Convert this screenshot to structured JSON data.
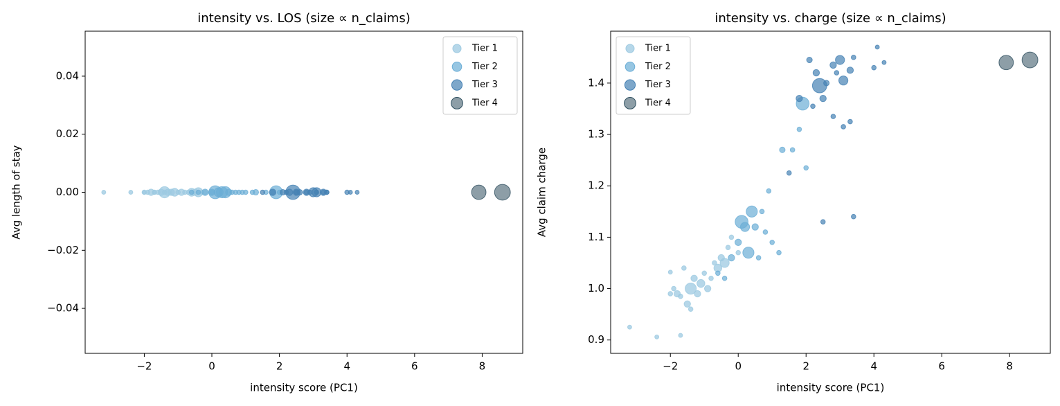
{
  "chart_data": [
    {
      "type": "scatter",
      "title": "intensity vs. LOS (size ∝ n_claims)",
      "xlabel": "intensity score (PC1)",
      "ylabel": "Avg length of stay",
      "xlim": [
        -3.75,
        9.2
      ],
      "ylim": [
        -0.0555,
        0.0555
      ],
      "xticks": [
        {
          "value": -2,
          "label": "−2"
        },
        0,
        2,
        4,
        6,
        8
      ],
      "yticks": [
        {
          "value": -0.04,
          "label": "−0.04"
        },
        {
          "value": -0.02,
          "label": "−0.02"
        },
        {
          "value": 0,
          "label": "0.00"
        },
        0.02,
        0.04
      ],
      "legend": "upper right",
      "series": [
        {
          "name": "Tier 1",
          "color": "#9ecae1",
          "x": [
            -3.2,
            -2.4,
            -1.7,
            -2.0,
            -2.0,
            -1.9,
            -1.8,
            -1.7,
            -1.6,
            -1.5,
            -1.4,
            -1.4,
            -1.3,
            -1.2,
            -1.1,
            -1.0,
            -0.9,
            -0.8,
            -0.7,
            -0.6,
            -0.5,
            -0.4,
            -0.3,
            -0.2,
            0.0
          ],
          "values": [
            0,
            0,
            0,
            0,
            0,
            0,
            0,
            0,
            0,
            0,
            0,
            0,
            0,
            0,
            0,
            0,
            0,
            0,
            0,
            0,
            0,
            0,
            0,
            0,
            0
          ],
          "sizes": [
            8,
            8,
            8,
            8,
            10,
            10,
            20,
            10,
            10,
            20,
            10,
            60,
            20,
            20,
            30,
            10,
            20,
            10,
            10,
            30,
            20,
            40,
            10,
            10,
            10
          ]
        },
        {
          "name": "Tier 2",
          "color": "#6baed6",
          "x": [
            -0.6,
            -0.4,
            -0.2,
            0.0,
            0.1,
            0.2,
            0.4,
            0.5,
            0.7,
            0.8,
            0.9,
            1.2,
            1.3,
            1.6,
            1.9,
            1.8,
            2.0,
            0.3,
            1.0,
            0.6
          ],
          "values": [
            0,
            0,
            0,
            0,
            0,
            0,
            0,
            0,
            0,
            0,
            0,
            0,
            0,
            0,
            0,
            0,
            0,
            0,
            0,
            0
          ],
          "sizes": [
            10,
            10,
            20,
            20,
            80,
            40,
            60,
            20,
            10,
            10,
            10,
            10,
            15,
            10,
            80,
            10,
            10,
            60,
            10,
            10
          ]
        },
        {
          "name": "Tier 3",
          "color": "#4682b4",
          "x": [
            1.5,
            1.8,
            2.1,
            2.4,
            2.3,
            2.5,
            2.6,
            2.8,
            3.0,
            3.1,
            3.3,
            3.4,
            2.8,
            3.1,
            3.3,
            3.4,
            2.5,
            4.0,
            4.1,
            4.3,
            2.2,
            2.9
          ],
          "values": [
            0,
            0,
            0,
            0,
            0,
            0,
            0,
            0,
            0,
            0,
            0,
            0,
            0,
            0,
            0,
            0,
            0,
            0,
            0,
            0,
            0,
            0
          ],
          "sizes": [
            10,
            20,
            15,
            100,
            20,
            20,
            15,
            20,
            40,
            40,
            20,
            10,
            10,
            10,
            10,
            10,
            10,
            10,
            8,
            8,
            10,
            10
          ]
        },
        {
          "name": "Tier 4",
          "color": "#2f4f5f",
          "x": [
            7.9,
            8.6
          ],
          "values": [
            0,
            0
          ],
          "sizes": [
            100,
            120
          ]
        }
      ]
    },
    {
      "type": "scatter",
      "title": "intensity vs. charge (size ∝ n_claims)",
      "xlabel": "intensity score (PC1)",
      "ylabel": "Avg claim charge",
      "xlim": [
        -3.76,
        9.2
      ],
      "ylim": [
        0.874,
        1.501
      ],
      "xticks": [
        {
          "value": -2,
          "label": "−2"
        },
        0,
        2,
        4,
        6,
        8
      ],
      "yticks": [
        0.9,
        {
          "value": 1.0,
          "label": "1.0"
        },
        1.1,
        1.2,
        1.3,
        1.4
      ],
      "legend": "upper left",
      "series": [
        {
          "name": "Tier 1",
          "color": "#9ecae1",
          "x": [
            -3.2,
            -2.4,
            -1.7,
            -2.0,
            -2.0,
            -1.9,
            -1.8,
            -1.7,
            -1.6,
            -1.5,
            -1.4,
            -1.4,
            -1.3,
            -1.2,
            -1.1,
            -1.0,
            -0.9,
            -0.8,
            -0.7,
            -0.6,
            -0.5,
            -0.4,
            -0.3,
            -0.2,
            0.0
          ],
          "values": [
            0.925,
            0.906,
            0.909,
            1.032,
            0.99,
            1.0,
            0.99,
            0.985,
            1.04,
            0.97,
            0.96,
            1.0,
            1.02,
            0.99,
            1.01,
            1.03,
            1.0,
            1.02,
            1.05,
            1.04,
            1.06,
            1.05,
            1.08,
            1.1,
            1.07
          ],
          "sizes": [
            8,
            8,
            8,
            8,
            10,
            10,
            20,
            10,
            10,
            20,
            10,
            60,
            20,
            20,
            30,
            10,
            20,
            10,
            10,
            30,
            20,
            40,
            10,
            10,
            10
          ]
        },
        {
          "name": "Tier 2",
          "color": "#6baed6",
          "x": [
            -0.6,
            -0.4,
            -0.2,
            0.0,
            0.1,
            0.2,
            0.4,
            0.5,
            0.7,
            0.8,
            0.9,
            1.2,
            1.3,
            1.6,
            1.9,
            1.8,
            2.0,
            0.3,
            1.0,
            0.6
          ],
          "values": [
            1.03,
            1.02,
            1.06,
            1.09,
            1.13,
            1.12,
            1.15,
            1.12,
            1.15,
            1.11,
            1.19,
            1.07,
            1.27,
            1.27,
            1.36,
            1.31,
            1.235,
            1.07,
            1.09,
            1.06
          ],
          "sizes": [
            10,
            10,
            20,
            20,
            80,
            40,
            60,
            20,
            10,
            10,
            10,
            10,
            15,
            10,
            80,
            10,
            10,
            60,
            10,
            10
          ]
        },
        {
          "name": "Tier 3",
          "color": "#4682b4",
          "x": [
            1.5,
            1.8,
            2.1,
            2.4,
            2.3,
            2.5,
            2.6,
            2.8,
            3.0,
            3.1,
            3.3,
            3.4,
            2.8,
            3.1,
            3.3,
            3.4,
            2.5,
            4.0,
            4.1,
            4.3,
            2.2,
            2.9
          ],
          "values": [
            1.225,
            1.37,
            1.445,
            1.395,
            1.42,
            1.37,
            1.4,
            1.435,
            1.445,
            1.405,
            1.425,
            1.45,
            1.335,
            1.315,
            1.325,
            1.14,
            1.13,
            1.43,
            1.47,
            1.44,
            1.355,
            1.42
          ],
          "sizes": [
            10,
            20,
            15,
            100,
            20,
            20,
            15,
            20,
            40,
            40,
            20,
            10,
            10,
            10,
            10,
            10,
            10,
            10,
            8,
            8,
            10,
            10
          ]
        },
        {
          "name": "Tier 4",
          "color": "#2f4f5f",
          "x": [
            7.9,
            8.6
          ],
          "values": [
            1.44,
            1.445
          ],
          "sizes": [
            100,
            120
          ]
        }
      ]
    }
  ]
}
